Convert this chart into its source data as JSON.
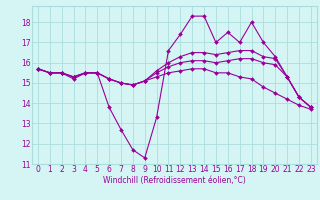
{
  "title": "",
  "xlabel": "Windchill (Refroidissement éolien,°C)",
  "ylabel": "",
  "bg_color": "#d5f5f5",
  "grid_color": "#aadddd",
  "line_color": "#990099",
  "x_values": [
    0,
    1,
    2,
    3,
    4,
    5,
    6,
    7,
    8,
    9,
    10,
    11,
    12,
    13,
    14,
    15,
    16,
    17,
    18,
    19,
    20,
    21,
    22,
    23
  ],
  "series": [
    [
      15.7,
      15.5,
      15.5,
      15.2,
      15.5,
      15.5,
      13.8,
      12.7,
      11.7,
      11.3,
      13.3,
      16.6,
      17.4,
      18.3,
      18.3,
      17.0,
      17.5,
      17.0,
      18.0,
      17.0,
      16.3,
      15.3,
      14.3,
      13.8
    ],
    [
      15.7,
      15.5,
      15.5,
      15.3,
      15.5,
      15.5,
      15.2,
      15.0,
      14.9,
      15.1,
      15.6,
      16.0,
      16.3,
      16.5,
      16.5,
      16.4,
      16.5,
      16.6,
      16.6,
      16.3,
      16.2,
      15.3,
      14.3,
      13.8
    ],
    [
      15.7,
      15.5,
      15.5,
      15.3,
      15.5,
      15.5,
      15.2,
      15.0,
      14.9,
      15.1,
      15.5,
      15.8,
      16.0,
      16.1,
      16.1,
      16.0,
      16.1,
      16.2,
      16.2,
      16.0,
      15.9,
      15.3,
      14.3,
      13.8
    ],
    [
      15.7,
      15.5,
      15.5,
      15.3,
      15.5,
      15.5,
      15.2,
      15.0,
      14.9,
      15.1,
      15.3,
      15.5,
      15.6,
      15.7,
      15.7,
      15.5,
      15.5,
      15.3,
      15.2,
      14.8,
      14.5,
      14.2,
      13.9,
      13.7
    ]
  ],
  "xlim": [
    -0.5,
    23.5
  ],
  "ylim": [
    11,
    18.8
  ],
  "yticks": [
    11,
    12,
    13,
    14,
    15,
    16,
    17,
    18
  ],
  "xticks": [
    0,
    1,
    2,
    3,
    4,
    5,
    6,
    7,
    8,
    9,
    10,
    11,
    12,
    13,
    14,
    15,
    16,
    17,
    18,
    19,
    20,
    21,
    22,
    23
  ],
  "font_size": 5.5,
  "marker": "D",
  "marker_size": 2.0,
  "line_width": 0.8
}
